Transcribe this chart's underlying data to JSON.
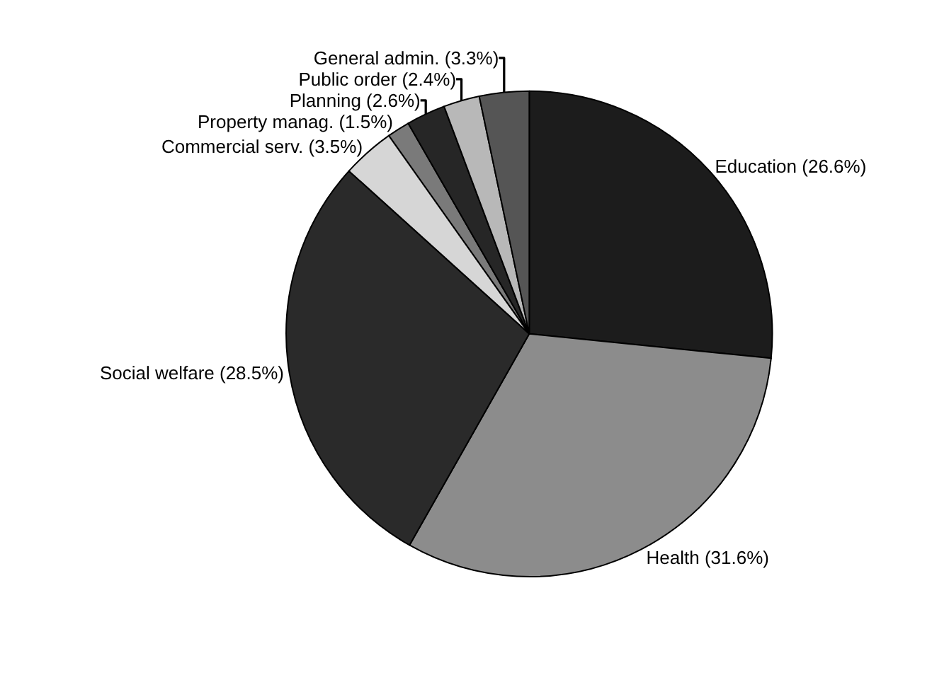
{
  "chart_data": {
    "type": "pie",
    "categories": [
      "Education",
      "Health",
      "Social welfare",
      "Commercial serv.",
      "Property manag.",
      "Planning",
      "Public order",
      "General admin."
    ],
    "values": [
      26.6,
      31.6,
      28.5,
      3.5,
      1.5,
      2.6,
      2.4,
      3.3
    ],
    "value_labels": [
      "(26.6%)",
      "(31.6%)",
      "(28.5%)",
      "(3.5%)",
      "(1.5%)",
      "(2.6%)",
      "(2.4%)",
      "(3.3%)"
    ],
    "colors": [
      "#1c1c1c",
      "#8c8c8c",
      "#2a2a2a",
      "#d6d6d6",
      "#7a7a7a",
      "#262626",
      "#b8b8b8",
      "#555555"
    ],
    "legend": false
  }
}
